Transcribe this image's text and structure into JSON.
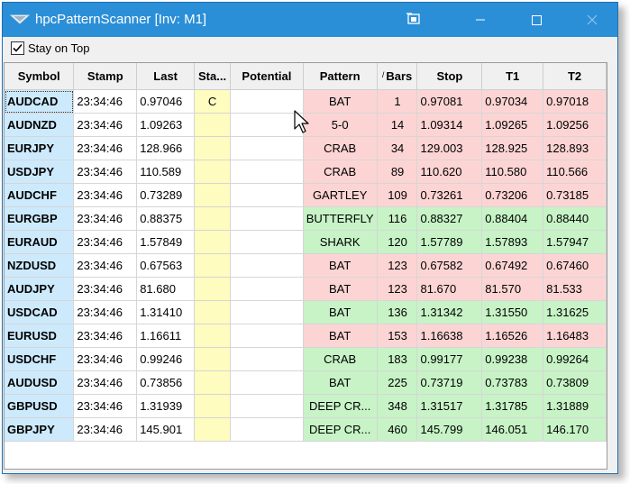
{
  "window": {
    "title": "hpcPatternScanner [Inv: M1]"
  },
  "options": {
    "stay_on_top_label": "Stay on Top",
    "stay_on_top_checked": true
  },
  "columns": [
    {
      "label": "Symbol"
    },
    {
      "label": "Stamp"
    },
    {
      "label": "Last"
    },
    {
      "label": "Sta..."
    },
    {
      "label": "Potential"
    },
    {
      "label": "Pattern"
    },
    {
      "label": "Bars",
      "sort_indicator": "/"
    },
    {
      "label": "Stop"
    },
    {
      "label": "T1"
    },
    {
      "label": "T2"
    }
  ],
  "rows": [
    {
      "symbol": "AUDCAD",
      "stamp": "23:34:46",
      "last": "0.97046",
      "status": "C",
      "potential": "",
      "pattern": "BAT",
      "bars": "1",
      "stop": "0.97081",
      "t1": "0.97034",
      "t2": "0.97018",
      "direction": "bear",
      "selected": true
    },
    {
      "symbol": "AUDNZD",
      "stamp": "23:34:46",
      "last": "1.09263",
      "status": "",
      "potential": "",
      "pattern": "5-0",
      "bars": "14",
      "stop": "1.09314",
      "t1": "1.09265",
      "t2": "1.09256",
      "direction": "bear"
    },
    {
      "symbol": "EURJPY",
      "stamp": "23:34:46",
      "last": "128.966",
      "status": "",
      "potential": "",
      "pattern": "CRAB",
      "bars": "34",
      "stop": "129.003",
      "t1": "128.925",
      "t2": "128.893",
      "direction": "bear"
    },
    {
      "symbol": "USDJPY",
      "stamp": "23:34:46",
      "last": "110.589",
      "status": "",
      "potential": "",
      "pattern": "CRAB",
      "bars": "89",
      "stop": "110.620",
      "t1": "110.580",
      "t2": "110.566",
      "direction": "bear"
    },
    {
      "symbol": "AUDCHF",
      "stamp": "23:34:46",
      "last": "0.73289",
      "status": "",
      "potential": "",
      "pattern": "GARTLEY",
      "bars": "109",
      "stop": "0.73261",
      "t1": "0.73206",
      "t2": "0.73185",
      "direction": "bear"
    },
    {
      "symbol": "EURGBP",
      "stamp": "23:34:46",
      "last": "0.88375",
      "status": "",
      "potential": "",
      "pattern": "BUTTERFLY",
      "bars": "116",
      "stop": "0.88327",
      "t1": "0.88404",
      "t2": "0.88440",
      "direction": "bull"
    },
    {
      "symbol": "EURAUD",
      "stamp": "23:34:46",
      "last": "1.57849",
      "status": "",
      "potential": "",
      "pattern": "SHARK",
      "bars": "120",
      "stop": "1.57789",
      "t1": "1.57893",
      "t2": "1.57947",
      "direction": "bull"
    },
    {
      "symbol": "NZDUSD",
      "stamp": "23:34:46",
      "last": "0.67563",
      "status": "",
      "potential": "",
      "pattern": "BAT",
      "bars": "123",
      "stop": "0.67582",
      "t1": "0.67492",
      "t2": "0.67460",
      "direction": "bear"
    },
    {
      "symbol": "AUDJPY",
      "stamp": "23:34:46",
      "last": "81.680",
      "status": "",
      "potential": "",
      "pattern": "BAT",
      "bars": "123",
      "stop": "81.670",
      "t1": "81.570",
      "t2": "81.533",
      "direction": "bear"
    },
    {
      "symbol": "USDCAD",
      "stamp": "23:34:46",
      "last": "1.31410",
      "status": "",
      "potential": "",
      "pattern": "BAT",
      "bars": "136",
      "stop": "1.31342",
      "t1": "1.31550",
      "t2": "1.31625",
      "direction": "bull"
    },
    {
      "symbol": "EURUSD",
      "stamp": "23:34:46",
      "last": "1.16611",
      "status": "",
      "potential": "",
      "pattern": "BAT",
      "bars": "153",
      "stop": "1.16638",
      "t1": "1.16526",
      "t2": "1.16483",
      "direction": "bear"
    },
    {
      "symbol": "USDCHF",
      "stamp": "23:34:46",
      "last": "0.99246",
      "status": "",
      "potential": "",
      "pattern": "CRAB",
      "bars": "183",
      "stop": "0.99177",
      "t1": "0.99238",
      "t2": "0.99264",
      "direction": "bull"
    },
    {
      "symbol": "AUDUSD",
      "stamp": "23:34:46",
      "last": "0.73856",
      "status": "",
      "potential": "",
      "pattern": "BAT",
      "bars": "225",
      "stop": "0.73719",
      "t1": "0.73783",
      "t2": "0.73809",
      "direction": "bull"
    },
    {
      "symbol": "GBPUSD",
      "stamp": "23:34:46",
      "last": "1.31939",
      "status": "",
      "potential": "",
      "pattern": "DEEP CR...",
      "bars": "348",
      "stop": "1.31517",
      "t1": "1.31785",
      "t2": "1.31889",
      "direction": "bull"
    },
    {
      "symbol": "GBPJPY",
      "stamp": "23:34:46",
      "last": "145.901",
      "status": "",
      "potential": "",
      "pattern": "DEEP CR...",
      "bars": "460",
      "stop": "145.799",
      "t1": "146.051",
      "t2": "146.170",
      "direction": "bull"
    }
  ],
  "colors": {
    "titlebar": "#2b8fd8",
    "symbol_cell": "#cdeafd",
    "status_cell": "#fefcbf",
    "bearish_zone": "#fdd4d4",
    "bullish_zone": "#c7f3c6"
  },
  "icons": [
    "app-icon",
    "pin-window-icon",
    "minimize-icon",
    "maximize-icon",
    "close-icon",
    "checkmark-icon",
    "mouse-pointer-icon"
  ]
}
